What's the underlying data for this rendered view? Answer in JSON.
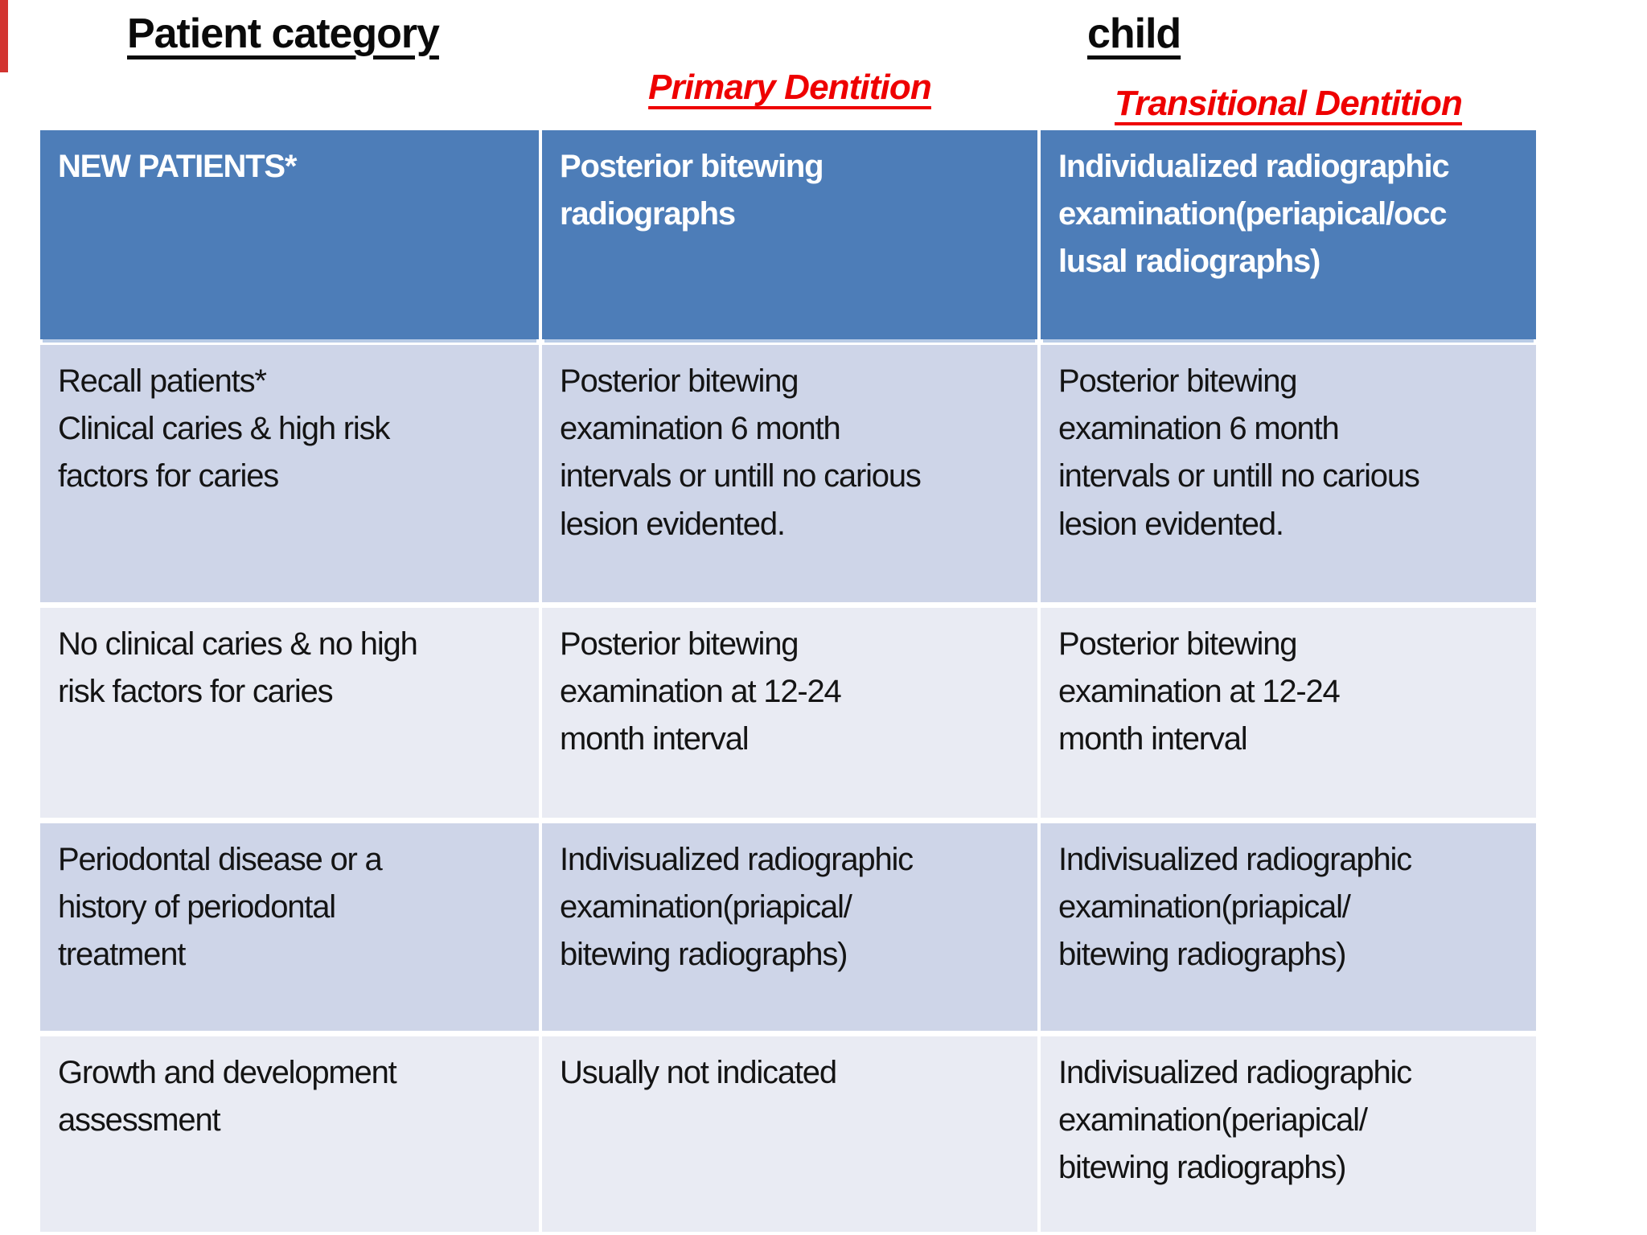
{
  "slide": {
    "heading_left": "Patient category",
    "heading_right": "child",
    "subheading_primary": "Primary Dentition",
    "subheading_transitional": "Transitional Dentition"
  },
  "colors": {
    "header_bg": "#4d7db8",
    "row_band_dark": "#ced5e8",
    "row_band_light": "#e9ebf3",
    "accent_red": "#ee0000",
    "header_text": "#ffffff",
    "body_text": "#141414",
    "corner_mark_red": "#d23430"
  },
  "table": {
    "header_row": {
      "patient_category": "NEW PATIENTS*",
      "primary_dentition": "Posterior bitewing\nradiographs",
      "transitional_dentition": "Individualized radiographic\nexamination(periapical/occ\nlusal radiographs)"
    },
    "rows": [
      {
        "patient_category": "Recall patients*\nClinical caries & high risk\nfactors for caries",
        "primary_dentition": "Posterior bitewing\nexamination 6 month\nintervals or untill no carious\nlesion evidented.",
        "transitional_dentition": "Posterior bitewing\nexamination 6 month\nintervals or untill no carious\nlesion evidented."
      },
      {
        "patient_category": "No clinical caries & no high\nrisk  factors for caries",
        "primary_dentition": "Posterior bitewing\nexamination at 12-24\nmonth interval",
        "transitional_dentition": "Posterior bitewing\nexamination at 12-24\nmonth interval"
      },
      {
        "patient_category": "Periodontal disease or a\nhistory of periodontal\ntreatment",
        "primary_dentition": "Indivisualized radiographic\nexamination(priapical/\nbitewing radiographs)",
        "transitional_dentition": "Indivisualized radiographic\nexamination(priapical/\nbitewing radiographs)"
      },
      {
        "patient_category": "Growth and development\nassessment",
        "primary_dentition": "Usually not indicated",
        "transitional_dentition": "Indivisualized radiographic\nexamination(periapical/\nbitewing radiographs)"
      }
    ]
  }
}
